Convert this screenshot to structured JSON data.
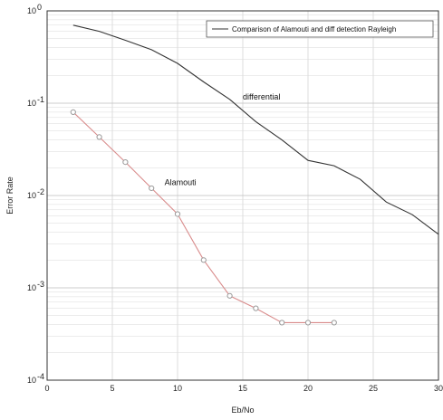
{
  "chart_data": {
    "type": "line",
    "title": "",
    "xlabel": "Eb/No",
    "ylabel": "Error Rate",
    "xlim": [
      0,
      30
    ],
    "ylim": [
      0.0001,
      1
    ],
    "y_scale": "log",
    "grid": true,
    "x_ticks": [
      0,
      5,
      10,
      15,
      20,
      25,
      30
    ],
    "x_tick_labels": [
      "0",
      "5",
      "10",
      "15",
      "20",
      "25",
      "30"
    ],
    "y_ticks": [
      1,
      0.1,
      0.01,
      0.001,
      0.0001
    ],
    "y_tick_labels": [
      {
        "base": "10",
        "exp": "0"
      },
      {
        "base": "10",
        "exp": "-1"
      },
      {
        "base": "10",
        "exp": "-2"
      },
      {
        "base": "10",
        "exp": "-3"
      },
      {
        "base": "10",
        "exp": "-4"
      }
    ],
    "legend": {
      "position": "top-right",
      "entries": [
        "Comparison of Alamouti and diff detection Rayleigh"
      ]
    },
    "series": [
      {
        "name": "Alamouti",
        "color": "#d98c8c",
        "marker": "circle",
        "x": [
          2,
          4,
          6,
          8,
          10,
          12,
          14,
          16,
          18,
          20,
          22
        ],
        "y": [
          0.08,
          0.043,
          0.023,
          0.012,
          0.0063,
          0.002,
          0.00082,
          0.0006,
          0.00042,
          0.00042,
          0.00042
        ]
      },
      {
        "name": "differential",
        "color": "#333333",
        "marker": "none",
        "x": [
          2,
          4,
          6,
          8,
          10,
          12,
          14,
          16,
          18,
          20,
          22,
          24,
          26,
          28,
          30
        ],
        "y": [
          0.7,
          0.6,
          0.48,
          0.38,
          0.27,
          0.17,
          0.11,
          0.063,
          0.04,
          0.024,
          0.021,
          0.015,
          0.0085,
          0.0062,
          0.0038
        ]
      }
    ],
    "annotations": [
      {
        "text": "differential",
        "x": 15,
        "y": 0.11
      },
      {
        "text": "Alamouti",
        "x": 9,
        "y": 0.013
      }
    ]
  }
}
